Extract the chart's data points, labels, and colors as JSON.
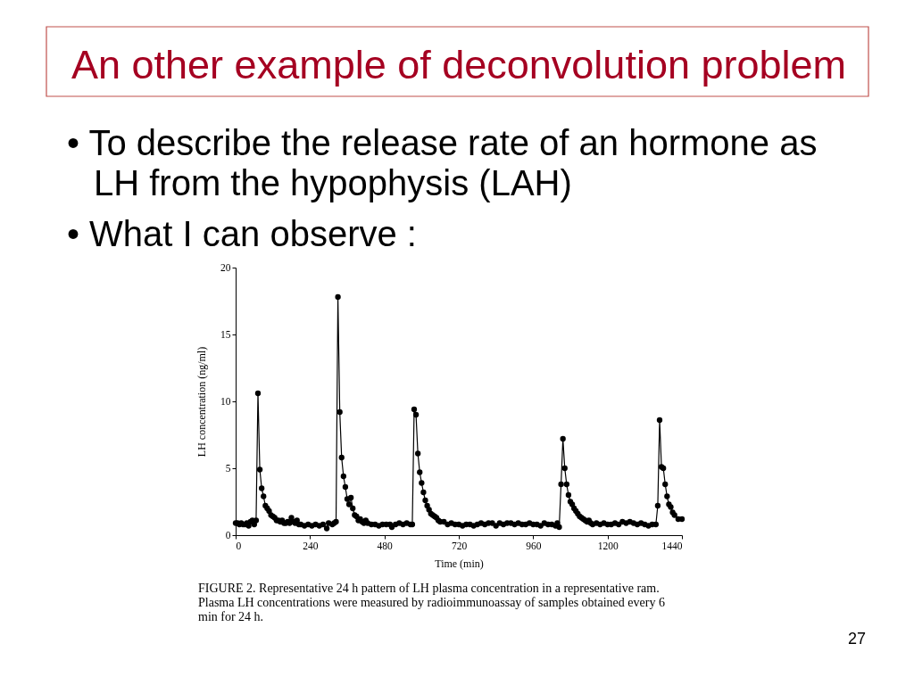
{
  "chart_data": {
    "type": "line",
    "title": "An other example of deconvolution problem",
    "xlabel": "Time (min)",
    "ylabel": "LH concentration (ng/ml)",
    "annotations": [
      "• To describe the release rate of an hormone as LH from the  hypophysis (LAH)",
      "• What I can observe :",
      "FIGURE 2. Representative 24 h pattern of LH plasma concentration in a representative ram. Plasma LH concentrations were measured by radioimmunoassay of samples obtained every 6 min for 24 h.",
      "27"
    ],
    "x": [
      0,
      6,
      12,
      18,
      24,
      30,
      36,
      42,
      48,
      54,
      60,
      66,
      72,
      78,
      84,
      90,
      96,
      102,
      108,
      114,
      120,
      126,
      132,
      138,
      144,
      150,
      156,
      162,
      168,
      174,
      180,
      186,
      192,
      198,
      204,
      210,
      222,
      234,
      246,
      258,
      270,
      282,
      294,
      300,
      312,
      318,
      324,
      330,
      336,
      342,
      348,
      354,
      360,
      366,
      372,
      378,
      384,
      390,
      396,
      402,
      408,
      414,
      420,
      426,
      438,
      450,
      462,
      474,
      486,
      498,
      504,
      516,
      528,
      540,
      552,
      564,
      570,
      576,
      582,
      588,
      594,
      600,
      606,
      612,
      618,
      624,
      630,
      636,
      642,
      648,
      654,
      660,
      672,
      684,
      696,
      708,
      720,
      732,
      744,
      756,
      768,
      780,
      792,
      804,
      816,
      828,
      840,
      852,
      864,
      876,
      888,
      900,
      912,
      924,
      936,
      948,
      960,
      972,
      984,
      996,
      1008,
      1020,
      1032,
      1038,
      1044,
      1050,
      1056,
      1062,
      1068,
      1074,
      1080,
      1086,
      1092,
      1098,
      1104,
      1110,
      1116,
      1122,
      1128,
      1134,
      1140,
      1146,
      1152,
      1164,
      1176,
      1188,
      1200,
      1212,
      1224,
      1236,
      1248,
      1260,
      1272,
      1284,
      1296,
      1308,
      1320,
      1332,
      1344,
      1356,
      1362,
      1368,
      1374,
      1380,
      1386,
      1392,
      1398,
      1404,
      1410,
      1416,
      1428,
      1440
    ],
    "values": [
      0.9,
      0.9,
      0.8,
      0.9,
      0.8,
      0.8,
      0.9,
      0.7,
      1.0,
      1.1,
      0.8,
      1.1,
      10.6,
      4.9,
      3.5,
      2.9,
      2.2,
      2.0,
      1.8,
      1.5,
      1.4,
      1.3,
      1.1,
      1.1,
      1.0,
      1.1,
      0.9,
      0.9,
      1.0,
      0.9,
      1.3,
      1.0,
      0.9,
      1.1,
      0.8,
      0.8,
      0.7,
      0.8,
      0.7,
      0.8,
      0.7,
      0.8,
      0.5,
      0.9,
      0.8,
      0.9,
      1.0,
      17.8,
      9.2,
      5.8,
      4.4,
      3.6,
      2.7,
      2.3,
      2.8,
      2.0,
      1.5,
      1.4,
      1.1,
      1.2,
      1.0,
      0.9,
      1.1,
      0.9,
      0.8,
      0.8,
      0.7,
      0.8,
      0.8,
      0.8,
      0.6,
      0.8,
      0.9,
      0.8,
      0.9,
      0.8,
      0.8,
      9.4,
      9.0,
      6.1,
      4.7,
      3.9,
      3.2,
      2.6,
      2.2,
      1.9,
      1.6,
      1.5,
      1.4,
      1.3,
      1.1,
      1.0,
      1.0,
      0.8,
      0.9,
      0.8,
      0.8,
      0.7,
      0.8,
      0.8,
      0.7,
      0.8,
      0.9,
      0.8,
      0.9,
      0.9,
      0.7,
      0.9,
      0.8,
      0.9,
      0.9,
      0.8,
      0.9,
      0.8,
      0.8,
      0.9,
      0.8,
      0.8,
      0.7,
      0.9,
      0.8,
      0.8,
      0.7,
      0.9,
      0.6,
      3.8,
      7.2,
      5.0,
      3.8,
      3.0,
      2.5,
      2.3,
      2.0,
      1.8,
      1.6,
      1.4,
      1.3,
      1.2,
      1.1,
      1.0,
      1.1,
      0.9,
      0.8,
      0.9,
      0.8,
      0.9,
      0.8,
      0.8,
      0.9,
      0.8,
      1.0,
      0.9,
      1.0,
      0.9,
      0.8,
      0.9,
      0.8,
      0.7,
      0.8,
      0.8,
      2.2,
      8.6,
      5.1,
      5.0,
      3.8,
      2.9,
      2.3,
      2.1,
      1.7,
      1.5,
      1.2,
      1.2
    ],
    "color": "#000000",
    "xlim": [
      0,
      1440
    ],
    "ylim": [
      0,
      20
    ],
    "xticks": [
      0,
      240,
      480,
      720,
      960,
      1200,
      1440
    ],
    "yticks": [
      0,
      5,
      10,
      15,
      20
    ],
    "grid": false,
    "marker": "circle",
    "line_style": "solid"
  }
}
